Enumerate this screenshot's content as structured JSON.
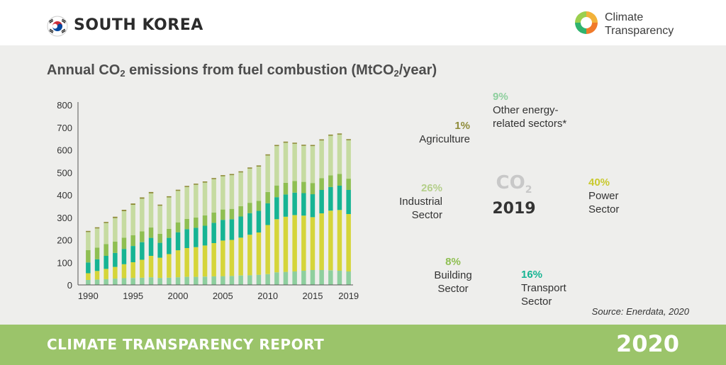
{
  "header": {
    "country": "SOUTH KOREA",
    "logo_line1": "Climate",
    "logo_line2": "Transparency"
  },
  "footer": {
    "report": "CLIMATE TRANSPARENCY REPORT",
    "year": "2020"
  },
  "source": "Source: Enerdata, 2020",
  "colors": {
    "power": "#d5d53a",
    "transport": "#16b493",
    "building": "#8fbf52",
    "industrial": "#c6dba1",
    "agriculture": "#8f8c3a",
    "other": "#8ecf9e",
    "header_bg": "#ffffff",
    "panel_bg": "#eeeeec",
    "footer_bg": "#9bc46a"
  },
  "chart_data": [
    {
      "type": "bar",
      "stacked": true,
      "title_parts": {
        "pre": "Annual CO",
        "sub1": "2",
        "mid": " emissions from fuel combustion (MtCO",
        "sub2": "2",
        "post": "/year)"
      },
      "ylim": [
        0,
        800
      ],
      "yticks": [
        0,
        100,
        200,
        300,
        400,
        500,
        600,
        700,
        800
      ],
      "xtick_labels": [
        "1990",
        "1995",
        "2000",
        "2005",
        "2010",
        "2015",
        "2019"
      ],
      "x": [
        1990,
        1991,
        1992,
        1993,
        1994,
        1995,
        1996,
        1997,
        1998,
        1999,
        2000,
        2001,
        2002,
        2003,
        2004,
        2005,
        2006,
        2007,
        2008,
        2009,
        2010,
        2011,
        2012,
        2013,
        2014,
        2015,
        2016,
        2017,
        2018,
        2019
      ],
      "series": [
        {
          "key": "other",
          "values": [
            22,
            24,
            26,
            28,
            30,
            31,
            32,
            34,
            31,
            32,
            34,
            36,
            36,
            37,
            38,
            39,
            40,
            42,
            43,
            45,
            48,
            56,
            58,
            60,
            63,
            66,
            66,
            65,
            63,
            60
          ]
        },
        {
          "key": "power",
          "values": [
            30,
            38,
            45,
            52,
            62,
            70,
            80,
            95,
            90,
            105,
            120,
            128,
            132,
            138,
            148,
            158,
            160,
            168,
            180,
            188,
            218,
            236,
            245,
            250,
            245,
            235,
            252,
            265,
            270,
            255
          ]
        },
        {
          "key": "transport",
          "values": [
            48,
            52,
            58,
            62,
            68,
            72,
            78,
            80,
            66,
            72,
            80,
            84,
            86,
            88,
            90,
            92,
            92,
            94,
            96,
            96,
            97,
            98,
            99,
            100,
            100,
            102,
            104,
            105,
            108,
            107
          ]
        },
        {
          "key": "building",
          "values": [
            55,
            52,
            52,
            50,
            50,
            48,
            48,
            46,
            40,
            40,
            44,
            45,
            46,
            46,
            46,
            46,
            46,
            46,
            46,
            45,
            50,
            52,
            52,
            52,
            50,
            50,
            52,
            52,
            52,
            50
          ]
        },
        {
          "key": "industrial",
          "values": [
            80,
            85,
            94,
            105,
            118,
            135,
            145,
            152,
            125,
            140,
            140,
            142,
            145,
            146,
            148,
            148,
            150,
            150,
            152,
            152,
            162,
            175,
            178,
            165,
            160,
            164,
            168,
            176,
            175,
            171
          ]
        },
        {
          "key": "agriculture",
          "values": [
            5,
            5,
            5,
            6,
            6,
            6,
            6,
            6,
            5,
            5,
            5,
            5,
            5,
            5,
            5,
            5,
            5,
            5,
            5,
            5,
            5,
            5,
            5,
            5,
            5,
            5,
            5,
            5,
            5,
            5
          ]
        }
      ]
    },
    {
      "type": "pie",
      "donut": true,
      "center_label": "CO",
      "center_sub": "2",
      "center_year": "2019",
      "slices": [
        {
          "key": "power",
          "pct": 40,
          "pct_label": "40%",
          "label1": "Power",
          "label2": "Sector"
        },
        {
          "key": "transport",
          "pct": 16,
          "pct_label": "16%",
          "label1": "Transport",
          "label2": "Sector"
        },
        {
          "key": "building",
          "pct": 8,
          "pct_label": "8%",
          "label1": "Building",
          "label2": "Sector"
        },
        {
          "key": "industrial",
          "pct": 26,
          "pct_label": "26%",
          "label1": "Industrial",
          "label2": "Sector"
        },
        {
          "key": "agriculture",
          "pct": 1,
          "pct_label": "1%",
          "label1": "Agriculture",
          "label2": ""
        },
        {
          "key": "other",
          "pct": 9,
          "pct_label": "9%",
          "label1": "Other energy-",
          "label2": "related sectors*"
        }
      ]
    }
  ]
}
